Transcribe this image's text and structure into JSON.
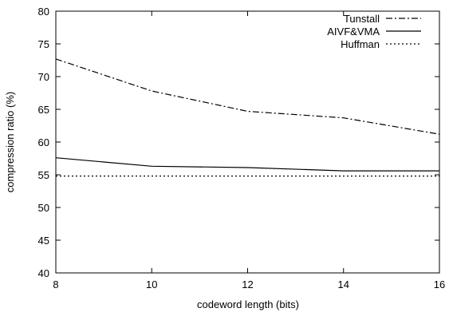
{
  "chart_data": {
    "type": "line",
    "xlabel": "codeword length (bits)",
    "ylabel": "compression ratio (%)",
    "xlim": [
      8,
      16
    ],
    "ylim": [
      40,
      80
    ],
    "x_ticks": [
      8,
      10,
      12,
      14,
      16
    ],
    "y_ticks": [
      40,
      45,
      50,
      55,
      60,
      65,
      70,
      75,
      80
    ],
    "grid": false,
    "legend_position": "top-right",
    "series": [
      {
        "name": "Tunstall",
        "style": "dash-dot",
        "color": "#000000",
        "x": [
          8,
          10,
          12,
          14,
          16
        ],
        "y": [
          72.7,
          67.8,
          64.7,
          63.7,
          61.2
        ]
      },
      {
        "name": "AIVF&VMA",
        "style": "solid",
        "color": "#000000",
        "x": [
          8,
          10,
          12,
          14,
          16
        ],
        "y": [
          57.6,
          56.3,
          56.1,
          55.6,
          55.6
        ]
      },
      {
        "name": "Huffman",
        "style": "dotted",
        "color": "#000000",
        "x": [
          8,
          10,
          12,
          14,
          16
        ],
        "y": [
          54.8,
          54.8,
          54.8,
          54.8,
          54.8
        ]
      }
    ]
  }
}
